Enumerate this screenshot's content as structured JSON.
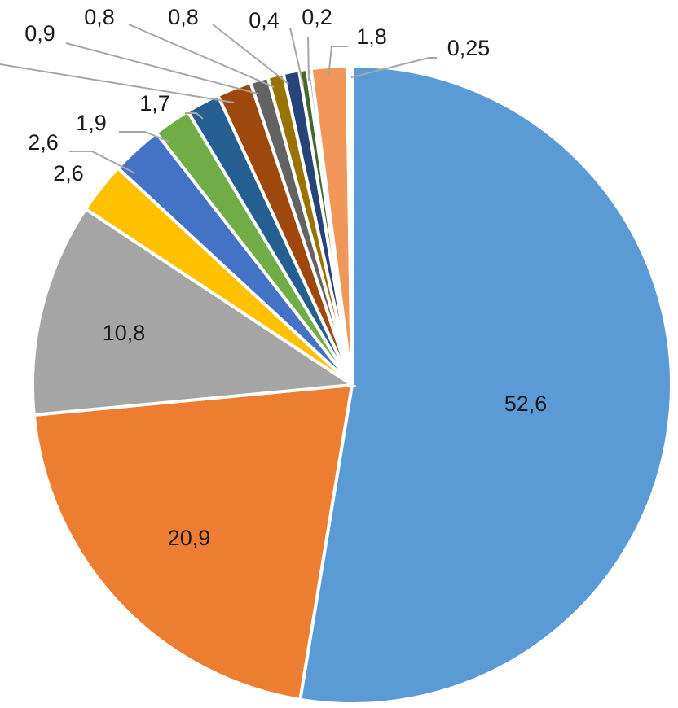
{
  "chart_data": {
    "type": "pie",
    "title": "",
    "start": "top, clockwise",
    "slices": [
      {
        "label": "52,6",
        "value": 52.6,
        "color": "#5b9bd5"
      },
      {
        "label": "20,9",
        "value": 20.9,
        "color": "#ed7d31"
      },
      {
        "label": "10,8",
        "value": 10.8,
        "color": "#a5a5a5"
      },
      {
        "label": "2,6",
        "value": 2.6,
        "color": "#ffc000"
      },
      {
        "label": "2,6",
        "value": 2.6,
        "color": "#4472c4"
      },
      {
        "label": "1,9",
        "value": 1.9,
        "color": "#70ad47"
      },
      {
        "label": "1,7",
        "value": 1.7,
        "color": "#255e91"
      },
      {
        "label": null,
        "value": 1.75,
        "color": "#9e480e"
      },
      {
        "label": "0,9",
        "value": 0.9,
        "color": "#636363"
      },
      {
        "label": "0,8",
        "value": 0.8,
        "color": "#997300"
      },
      {
        "label": "0,8",
        "value": 0.8,
        "color": "#264478"
      },
      {
        "label": "0,4",
        "value": 0.4,
        "color": "#43682b"
      },
      {
        "label": "0,2",
        "value": 0.2,
        "color": "#698ed0"
      },
      {
        "label": "1,8",
        "value": 1.8,
        "color": "#f1975a"
      },
      {
        "label": "0,25",
        "value": 0.25,
        "color": "#ffffff"
      }
    ]
  }
}
